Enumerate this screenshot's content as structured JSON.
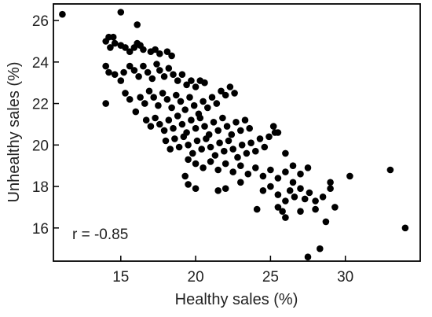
{
  "chart_data": {
    "type": "scatter",
    "xlabel": "Healthy sales (%)",
    "ylabel": "Unhealthy sales (%)",
    "xlim": [
      10.5,
      35
    ],
    "ylim": [
      14.4,
      26.8
    ],
    "xticks": [
      15,
      20,
      25,
      30
    ],
    "yticks": [
      16,
      18,
      20,
      22,
      24,
      26
    ],
    "grid": false,
    "annotation": "r = -0.85",
    "series": [
      {
        "marker_color": "#000000",
        "points": [
          [
            11.1,
            26.3
          ],
          [
            15.0,
            26.4
          ],
          [
            16.1,
            25.8
          ],
          [
            14.0,
            25.0
          ],
          [
            14.2,
            25.2
          ],
          [
            14.5,
            25.2
          ],
          [
            14.6,
            24.9
          ],
          [
            14.3,
            24.7
          ],
          [
            15.0,
            24.8
          ],
          [
            15.3,
            24.7
          ],
          [
            15.6,
            24.5
          ],
          [
            15.9,
            24.7
          ],
          [
            16.1,
            24.9
          ],
          [
            16.3,
            24.8
          ],
          [
            16.5,
            24.6
          ],
          [
            17.0,
            24.5
          ],
          [
            17.3,
            24.6
          ],
          [
            17.6,
            24.4
          ],
          [
            18.1,
            24.5
          ],
          [
            18.4,
            24.3
          ],
          [
            14.0,
            23.8
          ],
          [
            14.2,
            23.5
          ],
          [
            14.6,
            23.4
          ],
          [
            15.0,
            23.1
          ],
          [
            15.2,
            23.5
          ],
          [
            15.6,
            23.8
          ],
          [
            15.9,
            23.6
          ],
          [
            16.2,
            23.3
          ],
          [
            16.5,
            23.8
          ],
          [
            16.8,
            23.5
          ],
          [
            17.1,
            23.2
          ],
          [
            17.4,
            23.9
          ],
          [
            17.6,
            23.6
          ],
          [
            17.9,
            23.3
          ],
          [
            18.2,
            23.7
          ],
          [
            18.5,
            23.4
          ],
          [
            18.8,
            23.1
          ],
          [
            19.1,
            23.4
          ],
          [
            19.4,
            22.9
          ],
          [
            19.7,
            23.1
          ],
          [
            20.0,
            22.8
          ],
          [
            20.3,
            23.1
          ],
          [
            20.6,
            23.0
          ],
          [
            14.0,
            22.0
          ],
          [
            15.3,
            22.5
          ],
          [
            15.6,
            22.2
          ],
          [
            16.0,
            21.6
          ],
          [
            16.3,
            22.3
          ],
          [
            16.6,
            22.0
          ],
          [
            16.9,
            22.6
          ],
          [
            17.2,
            22.3
          ],
          [
            17.5,
            21.9
          ],
          [
            17.8,
            22.5
          ],
          [
            18.1,
            22.2
          ],
          [
            18.4,
            21.8
          ],
          [
            18.7,
            22.4
          ],
          [
            19.0,
            22.1
          ],
          [
            19.3,
            21.7
          ],
          [
            19.6,
            22.3
          ],
          [
            19.9,
            21.9
          ],
          [
            20.2,
            21.5
          ],
          [
            20.5,
            22.1
          ],
          [
            20.8,
            21.8
          ],
          [
            21.1,
            22.3
          ],
          [
            21.4,
            22.0
          ],
          [
            21.7,
            22.6
          ],
          [
            22.0,
            22.4
          ],
          [
            22.3,
            22.8
          ],
          [
            22.6,
            22.5
          ],
          [
            16.7,
            21.2
          ],
          [
            17.0,
            20.9
          ],
          [
            17.3,
            21.3
          ],
          [
            17.6,
            21.0
          ],
          [
            17.9,
            20.7
          ],
          [
            18.2,
            21.2
          ],
          [
            18.5,
            20.8
          ],
          [
            18.8,
            21.4
          ],
          [
            19.1,
            21.0
          ],
          [
            19.4,
            20.6
          ],
          [
            19.7,
            21.2
          ],
          [
            20.0,
            20.8
          ],
          [
            20.3,
            21.3
          ],
          [
            20.6,
            20.9
          ],
          [
            20.9,
            20.5
          ],
          [
            21.2,
            21.1
          ],
          [
            21.5,
            20.7
          ],
          [
            21.8,
            21.3
          ],
          [
            22.1,
            20.9
          ],
          [
            22.4,
            20.5
          ],
          [
            22.7,
            21.1
          ],
          [
            23.0,
            20.7
          ],
          [
            23.3,
            21.2
          ],
          [
            23.6,
            20.8
          ],
          [
            18.0,
            20.2
          ],
          [
            18.3,
            19.8
          ],
          [
            18.6,
            20.3
          ],
          [
            18.9,
            19.9
          ],
          [
            19.2,
            20.4
          ],
          [
            19.5,
            20.0
          ],
          [
            19.8,
            19.6
          ],
          [
            20.1,
            20.2
          ],
          [
            20.4,
            19.8
          ],
          [
            20.7,
            20.3
          ],
          [
            21.0,
            19.9
          ],
          [
            21.3,
            19.5
          ],
          [
            21.6,
            20.1
          ],
          [
            21.9,
            19.7
          ],
          [
            22.2,
            20.2
          ],
          [
            22.5,
            19.8
          ],
          [
            22.8,
            19.4
          ],
          [
            23.1,
            20.0
          ],
          [
            23.4,
            19.6
          ],
          [
            23.7,
            20.1
          ],
          [
            24.0,
            19.7
          ],
          [
            24.3,
            20.3
          ],
          [
            24.6,
            19.9
          ],
          [
            24.9,
            20.4
          ],
          [
            25.2,
            20.9
          ],
          [
            25.5,
            20.6
          ],
          [
            19.5,
            19.3
          ],
          [
            20.0,
            19.1
          ],
          [
            20.5,
            18.9
          ],
          [
            21.0,
            19.2
          ],
          [
            21.5,
            18.8
          ],
          [
            22.0,
            19.1
          ],
          [
            22.5,
            18.7
          ],
          [
            23.0,
            19.0
          ],
          [
            23.5,
            18.6
          ],
          [
            24.0,
            18.9
          ],
          [
            24.5,
            18.5
          ],
          [
            25.0,
            18.8
          ],
          [
            25.5,
            18.4
          ],
          [
            26.0,
            18.7
          ],
          [
            26.5,
            19.0
          ],
          [
            27.0,
            18.6
          ],
          [
            27.5,
            18.9
          ],
          [
            19.3,
            18.5
          ],
          [
            19.5,
            18.1
          ],
          [
            20.0,
            17.9
          ],
          [
            21.5,
            17.8
          ],
          [
            22.0,
            17.9
          ],
          [
            23.0,
            18.2
          ],
          [
            24.5,
            17.8
          ],
          [
            25.0,
            18.0
          ],
          [
            25.5,
            17.6
          ],
          [
            26.0,
            17.3
          ],
          [
            26.3,
            17.8
          ],
          [
            26.6,
            17.5
          ],
          [
            27.0,
            17.9
          ],
          [
            27.3,
            17.4
          ],
          [
            27.6,
            17.7
          ],
          [
            28.0,
            17.3
          ],
          [
            28.5,
            17.5
          ],
          [
            29.0,
            17.9
          ],
          [
            29.0,
            18.2
          ],
          [
            25.5,
            17.0
          ],
          [
            25.8,
            16.8
          ],
          [
            26.0,
            16.5
          ],
          [
            27.0,
            16.8
          ],
          [
            28.0,
            16.9
          ],
          [
            28.7,
            16.3
          ],
          [
            29.3,
            17.0
          ],
          [
            30.3,
            18.5
          ],
          [
            33.0,
            18.8
          ],
          [
            34.0,
            16.0
          ],
          [
            27.5,
            14.6
          ],
          [
            28.3,
            15.0
          ],
          [
            24.1,
            16.9
          ],
          [
            25.3,
            20.6
          ],
          [
            26.0,
            19.6
          ],
          [
            26.5,
            18.2
          ]
        ]
      }
    ]
  }
}
